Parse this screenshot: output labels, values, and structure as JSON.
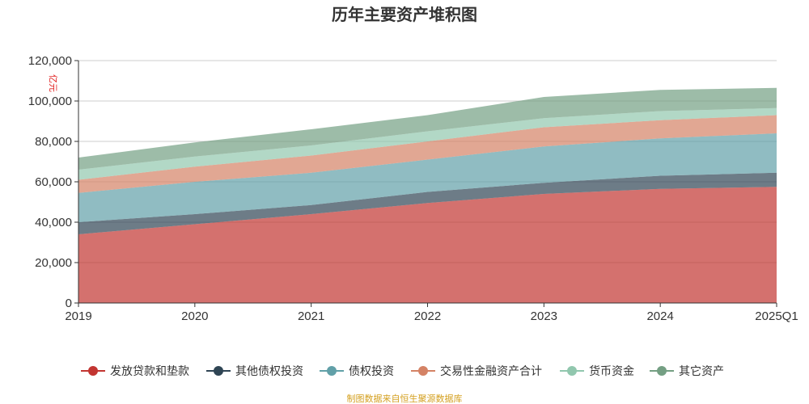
{
  "chart_data": {
    "type": "area",
    "stacked": true,
    "title": "历年主要资产堆积图",
    "ylabel": "亿元",
    "xlabel": "",
    "categories": [
      "2019",
      "2020",
      "2021",
      "2022",
      "2023",
      "2024",
      "2025Q1"
    ],
    "ylim": [
      0,
      120000
    ],
    "yticks": [
      0,
      20000,
      40000,
      60000,
      80000,
      100000,
      120000
    ],
    "ytick_labels": [
      "0",
      "20,000",
      "40,000",
      "60,000",
      "80,000",
      "100,000",
      "120,000"
    ],
    "grid": true,
    "legend_position": "bottom",
    "series": [
      {
        "name": "发放贷款和垫款",
        "color": "#c23531",
        "values": [
          34000,
          39000,
          44000,
          49500,
          54000,
          56500,
          57500
        ]
      },
      {
        "name": "其他债权投资",
        "color": "#2f4554",
        "values": [
          6000,
          5000,
          4500,
          5500,
          5500,
          6500,
          7000
        ]
      },
      {
        "name": "债权投资",
        "color": "#61a0a8",
        "values": [
          14500,
          16000,
          16000,
          16000,
          18000,
          18500,
          19500
        ]
      },
      {
        "name": "交易性金融资产合计",
        "color": "#d48265",
        "values": [
          6500,
          7500,
          8500,
          9000,
          9500,
          9000,
          9000
        ]
      },
      {
        "name": "货币资金",
        "color": "#91c7ae",
        "values": [
          5000,
          5000,
          5000,
          5000,
          4500,
          4500,
          3500
        ]
      },
      {
        "name": "其它资产",
        "color": "#749f83",
        "values": [
          6000,
          7000,
          8000,
          8000,
          10500,
          10500,
          10000
        ]
      }
    ],
    "footer": "制图数据来自恒生聚源数据库"
  }
}
